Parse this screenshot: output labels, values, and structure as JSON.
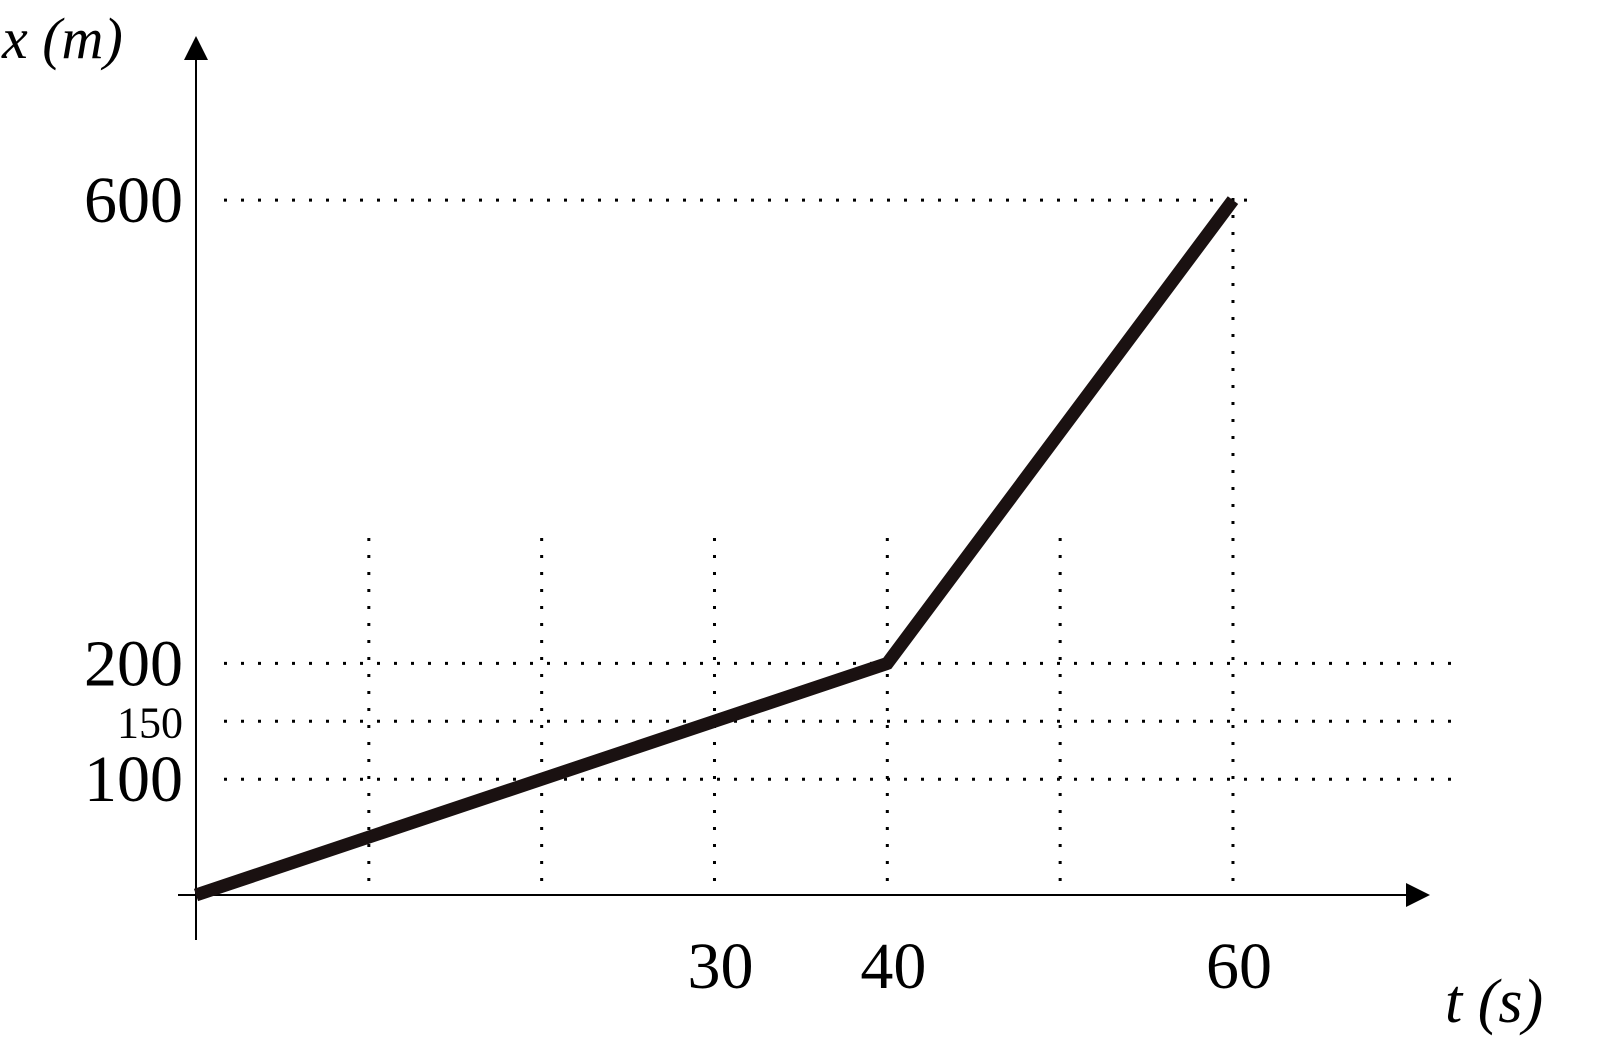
{
  "chart_data": {
    "type": "line",
    "x_label": "t (s)",
    "y_label": "x (m)",
    "x": [
      0,
      40,
      60
    ],
    "series": [
      {
        "values": [
          0,
          200,
          600
        ],
        "color": "#1a1111"
      }
    ],
    "xlim": [
      0,
      71.4
    ],
    "ylim": [
      0,
      740
    ],
    "xticks": [
      30,
      40,
      60
    ],
    "yticks": [
      100,
      150,
      200,
      600
    ],
    "xgrid": [
      10,
      20,
      30,
      40,
      50,
      60
    ],
    "grid": true
  }
}
